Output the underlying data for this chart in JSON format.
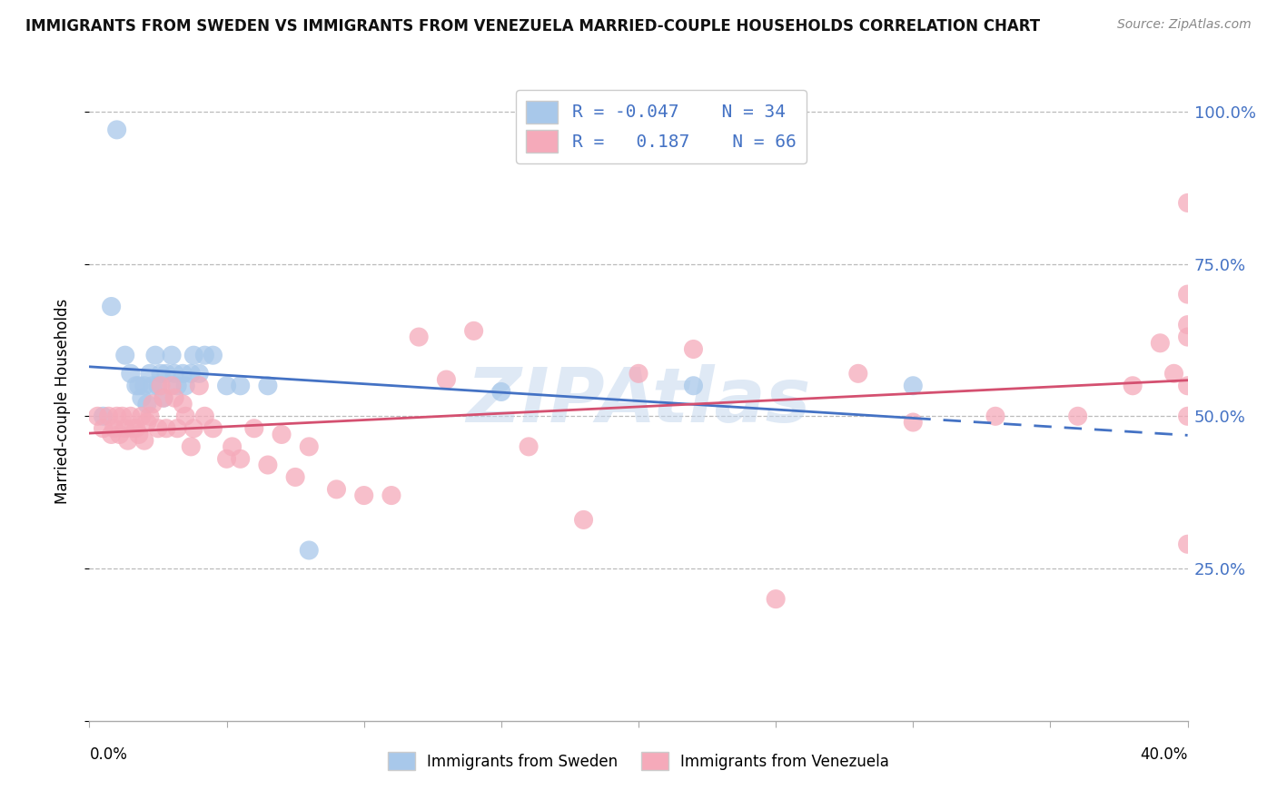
{
  "title": "IMMIGRANTS FROM SWEDEN VS IMMIGRANTS FROM VENEZUELA MARRIED-COUPLE HOUSEHOLDS CORRELATION CHART",
  "source": "Source: ZipAtlas.com",
  "ylabel": "Married-couple Households",
  "ytick_vals": [
    0.0,
    0.25,
    0.5,
    0.75,
    1.0
  ],
  "ytick_labels_right": [
    "",
    "25.0%",
    "50.0%",
    "75.0%",
    "100.0%"
  ],
  "xtick_positions": [
    0.0,
    0.05,
    0.1,
    0.15,
    0.2,
    0.25,
    0.3,
    0.35,
    0.4
  ],
  "xlim": [
    0.0,
    0.4
  ],
  "ylim": [
    0.0,
    1.05
  ],
  "legend_R_sweden": "-0.047",
  "legend_N_sweden": "34",
  "legend_R_venezuela": "0.187",
  "legend_N_venezuela": "66",
  "sweden_color": "#A8C8EA",
  "venezuela_color": "#F5AABA",
  "sweden_line_color": "#4472C4",
  "venezuela_line_color": "#D45070",
  "background_color": "#ffffff",
  "grid_color": "#BBBBBB",
  "right_axis_color": "#4472C4",
  "watermark_text": "ZIPAtlas",
  "watermark_color": "#C5D8EE",
  "sweden_x": [
    0.005,
    0.008,
    0.01,
    0.013,
    0.015,
    0.017,
    0.018,
    0.019,
    0.02,
    0.021,
    0.022,
    0.023,
    0.024,
    0.025,
    0.026,
    0.027,
    0.028,
    0.03,
    0.031,
    0.032,
    0.034,
    0.035,
    0.037,
    0.038,
    0.04,
    0.042,
    0.045,
    0.05,
    0.055,
    0.065,
    0.08,
    0.15,
    0.22,
    0.3
  ],
  "sweden_y": [
    0.5,
    0.68,
    0.97,
    0.6,
    0.57,
    0.55,
    0.55,
    0.53,
    0.55,
    0.52,
    0.57,
    0.55,
    0.6,
    0.55,
    0.57,
    0.53,
    0.57,
    0.6,
    0.57,
    0.55,
    0.57,
    0.55,
    0.57,
    0.6,
    0.57,
    0.6,
    0.6,
    0.55,
    0.55,
    0.55,
    0.28,
    0.54,
    0.55,
    0.55
  ],
  "venezuela_x": [
    0.003,
    0.005,
    0.007,
    0.008,
    0.009,
    0.01,
    0.011,
    0.012,
    0.013,
    0.014,
    0.015,
    0.016,
    0.017,
    0.018,
    0.019,
    0.02,
    0.021,
    0.022,
    0.023,
    0.025,
    0.026,
    0.027,
    0.028,
    0.03,
    0.031,
    0.032,
    0.034,
    0.035,
    0.037,
    0.038,
    0.04,
    0.042,
    0.045,
    0.05,
    0.052,
    0.055,
    0.06,
    0.065,
    0.07,
    0.075,
    0.08,
    0.09,
    0.1,
    0.11,
    0.12,
    0.13,
    0.14,
    0.16,
    0.18,
    0.2,
    0.22,
    0.25,
    0.28,
    0.3,
    0.33,
    0.36,
    0.38,
    0.39,
    0.395,
    0.4,
    0.4,
    0.4,
    0.4,
    0.4,
    0.4,
    0.4
  ],
  "venezuela_y": [
    0.5,
    0.48,
    0.5,
    0.47,
    0.48,
    0.5,
    0.47,
    0.5,
    0.48,
    0.46,
    0.5,
    0.48,
    0.48,
    0.47,
    0.5,
    0.46,
    0.49,
    0.5,
    0.52,
    0.48,
    0.55,
    0.53,
    0.48,
    0.55,
    0.53,
    0.48,
    0.52,
    0.5,
    0.45,
    0.48,
    0.55,
    0.5,
    0.48,
    0.43,
    0.45,
    0.43,
    0.48,
    0.42,
    0.47,
    0.4,
    0.45,
    0.38,
    0.37,
    0.37,
    0.63,
    0.56,
    0.64,
    0.45,
    0.33,
    0.57,
    0.61,
    0.2,
    0.57,
    0.49,
    0.5,
    0.5,
    0.55,
    0.62,
    0.57,
    0.65,
    0.85,
    0.29,
    0.5,
    0.7,
    0.63,
    0.55
  ]
}
